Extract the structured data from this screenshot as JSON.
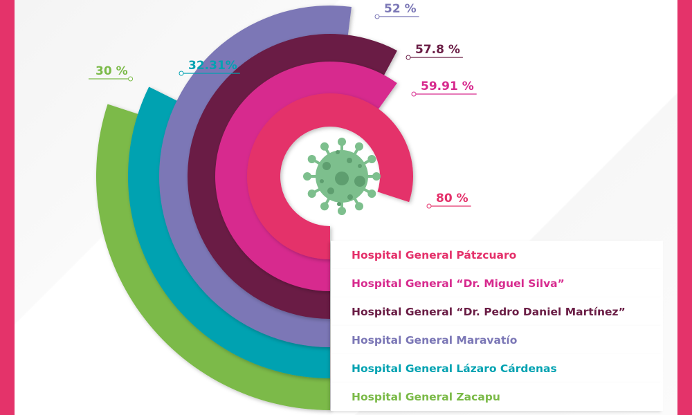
{
  "chart_data": {
    "type": "radial-bar",
    "title": "",
    "series": [
      {
        "name": "Hospital General Pátzcuaro",
        "value": 80,
        "label": "80 %",
        "color": "#e4306a"
      },
      {
        "name": "Hospital General “Dr. Miguel Silva”",
        "value": 59.91,
        "label": "59.91 %",
        "color": "#d72a8e"
      },
      {
        "name": "Hospital General “Dr. Pedro Daniel Martínez”",
        "value": 57.8,
        "label": "57.8 %",
        "color": "#6a1d45"
      },
      {
        "name": "Hospital General Maravatío",
        "value": 52,
        "label": "52 %",
        "color": "#7b77b6"
      },
      {
        "name": "Hospital General Lázaro Cárdenas",
        "value": 32.31,
        "label": "32.31%",
        "color": "#00a2b1"
      },
      {
        "name": "Hospital General Zacapu",
        "value": 30,
        "label": "30 %",
        "color": "#7bba48"
      }
    ],
    "range": [
      0,
      100
    ]
  },
  "icon": "virus-icon",
  "colors": {
    "frame": "#e4336a",
    "virus": "#7dbf8d"
  }
}
